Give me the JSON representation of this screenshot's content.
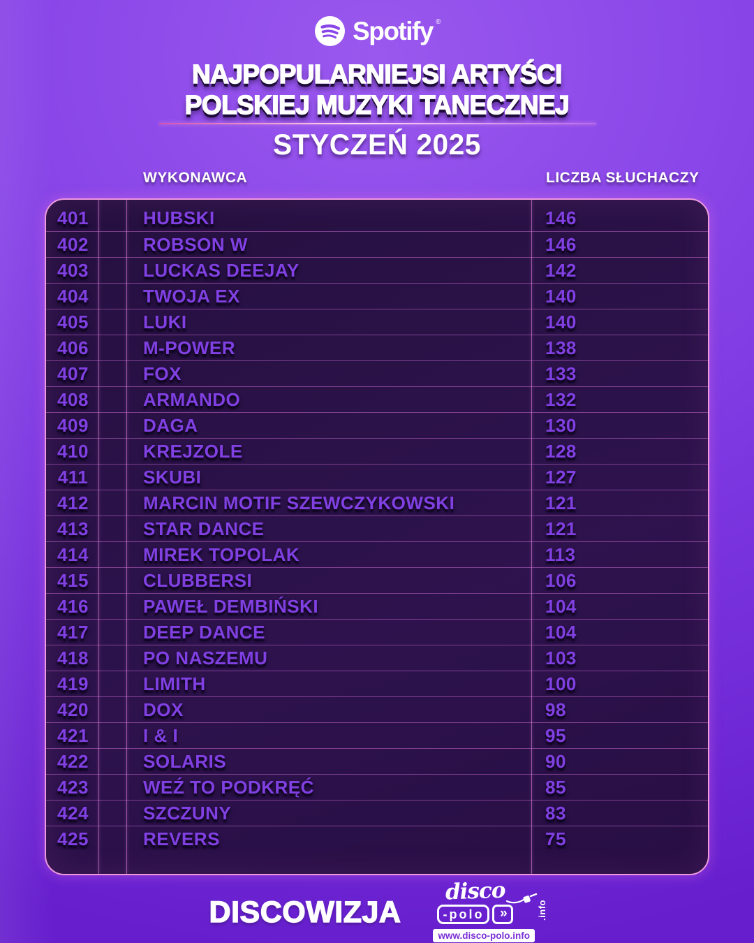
{
  "header": {
    "brand": "Spotify",
    "registered_mark": "®",
    "title_line1": "NAJPOPULARNIEJSI ARTYŚCI",
    "title_line2": "POLSKIEJ MUZYKI TANECZNEJ",
    "subtitle": "STYCZEŃ 2025"
  },
  "columns": {
    "artist_label": "WYKONAWCA",
    "listeners_label": "LICZBA SŁUCHACZY"
  },
  "chart_data": {
    "type": "table",
    "title": "NAJPOPULARNIEJSI ARTYŚCI POLSKIEJ MUZYKI TANECZNEJ — STYCZEŃ 2025",
    "columns": [
      "rank",
      "artist",
      "listeners"
    ],
    "rows": [
      {
        "rank": "401",
        "artist": "HUBSKI",
        "listeners": "146"
      },
      {
        "rank": "402",
        "artist": "ROBSON W",
        "listeners": "146"
      },
      {
        "rank": "403",
        "artist": "LUCKAS DEEJAY",
        "listeners": "142"
      },
      {
        "rank": "404",
        "artist": "TWOJA EX",
        "listeners": "140"
      },
      {
        "rank": "405",
        "artist": "LUKI",
        "listeners": "140"
      },
      {
        "rank": "406",
        "artist": "M-POWER",
        "listeners": "138"
      },
      {
        "rank": "407",
        "artist": "FOX",
        "listeners": "133"
      },
      {
        "rank": "408",
        "artist": "ARMANDO",
        "listeners": "132"
      },
      {
        "rank": "409",
        "artist": "DAGA",
        "listeners": "130"
      },
      {
        "rank": "410",
        "artist": "KREJZOLE",
        "listeners": "128"
      },
      {
        "rank": "411",
        "artist": "SKUBI",
        "listeners": "127"
      },
      {
        "rank": "412",
        "artist": "MARCIN MOTIF SZEWCZYKOWSKI",
        "listeners": "121"
      },
      {
        "rank": "413",
        "artist": "STAR DANCE",
        "listeners": "121"
      },
      {
        "rank": "414",
        "artist": "MIREK TOPOLAK",
        "listeners": "113"
      },
      {
        "rank": "415",
        "artist": "CLUBBERSI",
        "listeners": "106"
      },
      {
        "rank": "416",
        "artist": "PAWEŁ DEMBIŃSKI",
        "listeners": "104"
      },
      {
        "rank": "417",
        "artist": "DEEP DANCE",
        "listeners": "104"
      },
      {
        "rank": "418",
        "artist": "PO NASZEMU",
        "listeners": "103"
      },
      {
        "rank": "419",
        "artist": "LIMITH",
        "listeners": "100"
      },
      {
        "rank": "420",
        "artist": "DOX",
        "listeners": "98"
      },
      {
        "rank": "421",
        "artist": "I & I",
        "listeners": "95"
      },
      {
        "rank": "422",
        "artist": "SOLARIS",
        "listeners": "90"
      },
      {
        "rank": "423",
        "artist": "WEŹ TO PODKRĘĆ",
        "listeners": "85"
      },
      {
        "rank": "424",
        "artist": "SZCZUNY",
        "listeners": "83"
      },
      {
        "rank": "425",
        "artist": "REVERS",
        "listeners": "75"
      }
    ]
  },
  "footer": {
    "brand": "DISCOWIZJA",
    "logo_script": "disco",
    "logo_box": "-polo",
    "logo_chevrons": "»",
    "logo_info_vertical": ".info",
    "logo_url": "www.disco-polo.info"
  },
  "colors": {
    "background_purple": "#8a46e8",
    "table_background": "#26104266",
    "table_border_pink": "#ef9ade",
    "row_text_purple": "#8040e2",
    "white": "#ffffff"
  }
}
